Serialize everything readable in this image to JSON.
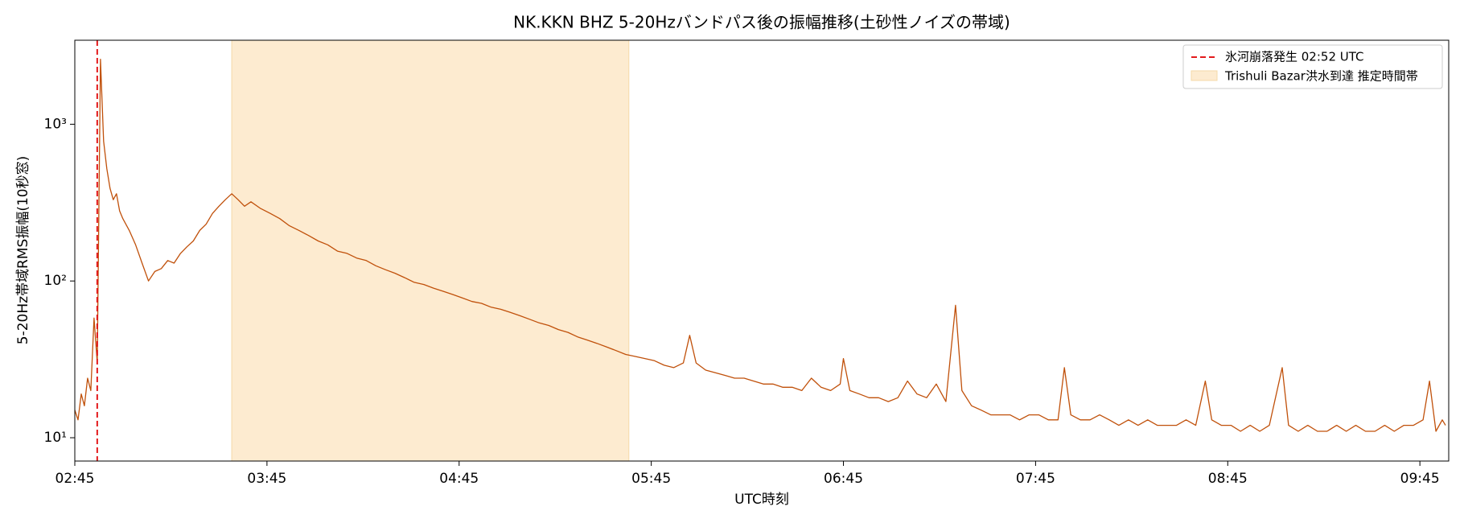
{
  "chart_data": {
    "type": "line",
    "title": "NK.KKN BHZ  5-20Hzバンドパス後の振幅推移(土砂性ノイズの帯域)",
    "xlabel": "UTC時刻",
    "ylabel": "5-20Hz帯域RMS振幅(10秒窓)",
    "log_y": true,
    "legend": "upper right",
    "xlim": [
      "02:45",
      "09:54"
    ],
    "xticks": [
      "02:45",
      "03:45",
      "04:45",
      "05:45",
      "06:45",
      "07:45",
      "08:45",
      "09:45"
    ],
    "ylim": [
      7.1,
      3435
    ],
    "yticks": [
      {
        "value": 10,
        "label": "10¹"
      },
      {
        "value": 100,
        "label": "10²"
      },
      {
        "value": 1000,
        "label": "10³"
      }
    ],
    "event": {
      "label": "氷河崩落発生 02:52 UTC",
      "x": "02:52",
      "color": "#e31a1c"
    },
    "shade": {
      "label": "Trishuli Bazar洪水到達 推定時間帯",
      "start": "03:34",
      "end": "05:38",
      "color": "#fdebd0"
    },
    "x": [
      "02:45",
      "02:46",
      "02:47",
      "02:48",
      "02:49",
      "02:50",
      "02:51",
      "02:52",
      "02:53",
      "02:54",
      "02:55",
      "02:56",
      "02:57",
      "02:58",
      "02:59",
      "03:00",
      "03:02",
      "03:04",
      "03:06",
      "03:08",
      "03:10",
      "03:12",
      "03:14",
      "03:16",
      "03:18",
      "03:20",
      "03:22",
      "03:24",
      "03:26",
      "03:28",
      "03:30",
      "03:32",
      "03:34",
      "03:36",
      "03:38",
      "03:40",
      "03:43",
      "03:46",
      "03:49",
      "03:52",
      "03:55",
      "03:58",
      "04:01",
      "04:04",
      "04:07",
      "04:10",
      "04:13",
      "04:16",
      "04:19",
      "04:22",
      "04:25",
      "04:28",
      "04:31",
      "04:34",
      "04:37",
      "04:40",
      "04:43",
      "04:46",
      "04:49",
      "04:52",
      "04:55",
      "04:58",
      "05:01",
      "05:04",
      "05:07",
      "05:10",
      "05:13",
      "05:16",
      "05:19",
      "05:22",
      "05:25",
      "05:28",
      "05:31",
      "05:34",
      "05:37",
      "05:40",
      "05:43",
      "05:46",
      "05:49",
      "05:52",
      "05:55",
      "05:57",
      "05:59",
      "06:02",
      "06:05",
      "06:08",
      "06:11",
      "06:14",
      "06:17",
      "06:20",
      "06:23",
      "06:26",
      "06:29",
      "06:32",
      "06:35",
      "06:38",
      "06:41",
      "06:44",
      "06:45",
      "06:47",
      "06:50",
      "06:53",
      "06:56",
      "06:59",
      "07:02",
      "07:05",
      "07:08",
      "07:11",
      "07:14",
      "07:17",
      "07:20",
      "07:22",
      "07:25",
      "07:28",
      "07:31",
      "07:34",
      "07:37",
      "07:40",
      "07:43",
      "07:46",
      "07:49",
      "07:52",
      "07:54",
      "07:56",
      "07:59",
      "08:02",
      "08:05",
      "08:08",
      "08:11",
      "08:14",
      "08:17",
      "08:20",
      "08:23",
      "08:26",
      "08:29",
      "08:32",
      "08:35",
      "08:38",
      "08:40",
      "08:43",
      "08:46",
      "08:49",
      "08:52",
      "08:55",
      "08:58",
      "09:02",
      "09:04",
      "09:07",
      "09:10",
      "09:13",
      "09:16",
      "09:19",
      "09:22",
      "09:25",
      "09:28",
      "09:31",
      "09:34",
      "09:37",
      "09:40",
      "09:43",
      "09:46",
      "09:48",
      "09:50",
      "09:52",
      "09:53"
    ],
    "series": [
      {
        "color": "#c0500a",
        "values": [
          15,
          13,
          19,
          16,
          24,
          20,
          58,
          30,
          2600,
          780,
          520,
          390,
          330,
          360,
          280,
          250,
          210,
          170,
          130,
          100,
          115,
          120,
          135,
          130,
          150,
          165,
          180,
          210,
          230,
          270,
          300,
          330,
          360,
          330,
          300,
          320,
          290,
          270,
          250,
          225,
          210,
          195,
          180,
          170,
          155,
          150,
          140,
          135,
          125,
          118,
          112,
          105,
          98,
          95,
          90,
          86,
          82,
          78,
          74,
          72,
          68,
          66,
          63,
          60,
          57,
          54,
          52,
          49,
          47,
          44,
          42,
          40,
          38,
          36,
          34,
          33,
          32,
          31,
          29,
          28,
          30,
          45,
          30,
          27,
          26,
          25,
          24,
          24,
          23,
          22,
          22,
          21,
          21,
          20,
          24,
          21,
          20,
          22,
          32,
          20,
          19,
          18,
          18,
          17,
          18,
          23,
          19,
          18,
          22,
          17,
          70,
          20,
          16,
          15,
          14,
          14,
          14,
          13,
          14,
          14,
          13,
          13,
          28,
          14,
          13,
          13,
          14,
          13,
          12,
          13,
          12,
          13,
          12,
          12,
          12,
          13,
          12,
          23,
          13,
          12,
          12,
          11,
          12,
          11,
          12,
          28,
          12,
          11,
          12,
          11,
          11,
          12,
          11,
          12,
          11,
          11,
          12,
          11,
          12,
          12,
          13,
          23,
          11,
          13,
          12
        ]
      }
    ]
  }
}
